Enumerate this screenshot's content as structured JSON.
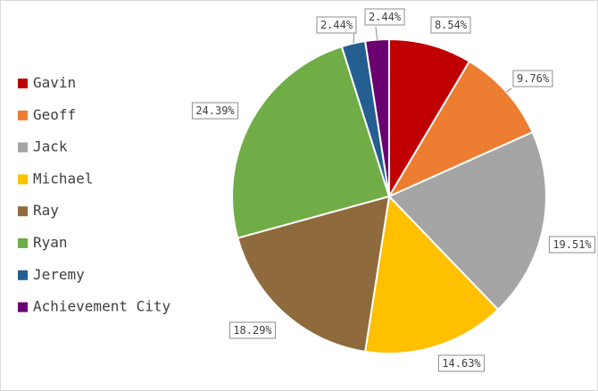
{
  "chart_data": {
    "type": "pie",
    "title": "",
    "legend_position": "left",
    "start_angle_deg": 0,
    "direction": "clockwise",
    "slices": [
      {
        "label": "Gavin",
        "value": 8.54,
        "display": "8.54%",
        "color": "#c00000"
      },
      {
        "label": "Geoff",
        "value": 9.76,
        "display": "9.76%",
        "color": "#ed7d31"
      },
      {
        "label": "Jack",
        "value": 19.51,
        "display": "19.51%",
        "color": "#a5a5a5"
      },
      {
        "label": "Michael",
        "value": 14.63,
        "display": "14.63%",
        "color": "#ffc000"
      },
      {
        "label": "Ray",
        "value": 18.29,
        "display": "18.29%",
        "color": "#8e6a3d"
      },
      {
        "label": "Ryan",
        "value": 24.39,
        "display": "24.39%",
        "color": "#70ad47"
      },
      {
        "label": "Jeremy",
        "value": 2.44,
        "display": "2.44%",
        "color": "#255e91"
      },
      {
        "label": "Achievement City",
        "value": 2.44,
        "display": "2.44%",
        "color": "#6a0070"
      }
    ]
  }
}
